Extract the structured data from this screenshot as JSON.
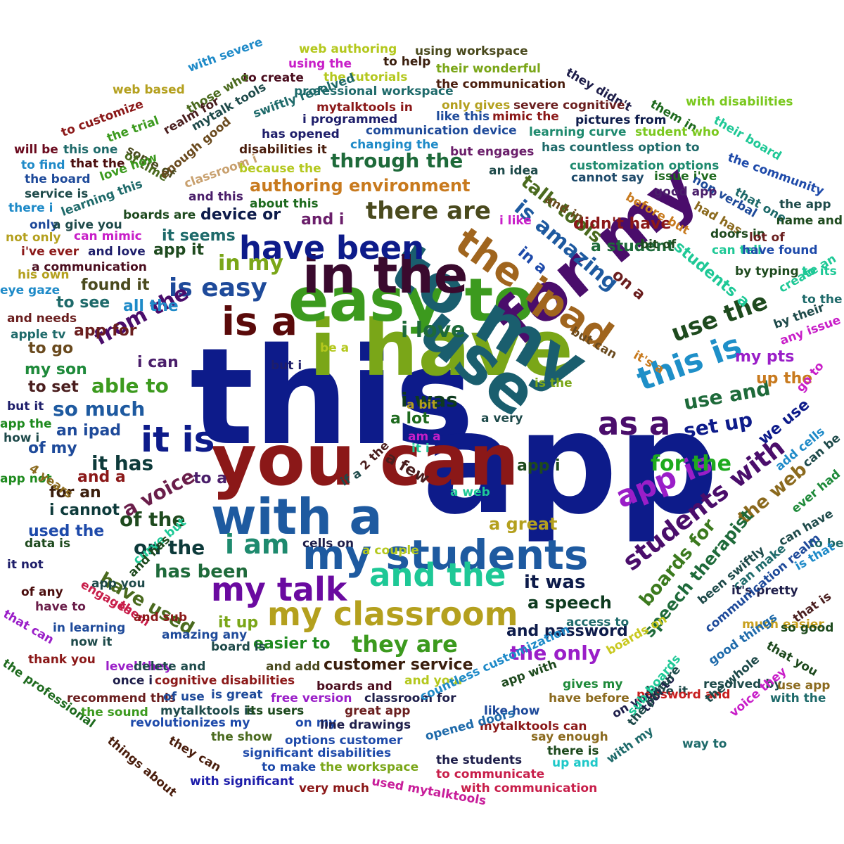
{
  "words": [
    {
      "text": "this",
      "color": "#0d1b8a"
    },
    {
      "text": "app",
      "color": "#0d1b8a"
    },
    {
      "text": "i have",
      "color": "#7aa618"
    },
    {
      "text": "easy to",
      "color": "#3c9a1e"
    },
    {
      "text": "use",
      "color": "#1a5e6e"
    },
    {
      "text": "for my",
      "color": "#4a0d6b"
    },
    {
      "text": "you can",
      "color": "#8b1818"
    },
    {
      "text": "to my",
      "color": "#1a5e6e"
    },
    {
      "text": "in the",
      "color": "#3a0a2e"
    },
    {
      "text": "with a",
      "color": "#1e5aa0"
    },
    {
      "text": "my students",
      "color": "#1e5aa0"
    },
    {
      "text": "is a",
      "color": "#5a0a0a"
    },
    {
      "text": "it is",
      "color": "#0d1b8a"
    },
    {
      "text": "the ipad",
      "color": "#a0651e"
    },
    {
      "text": "this is",
      "color": "#1e8fc8"
    },
    {
      "text": "as a",
      "color": "#4a0d6b"
    },
    {
      "text": "have been",
      "color": "#0d1b8a"
    },
    {
      "text": "is easy",
      "color": "#1e4a9a"
    },
    {
      "text": "my talk",
      "color": "#6a0aa0"
    },
    {
      "text": "and the",
      "color": "#1ec896"
    },
    {
      "text": "my classroom",
      "color": "#b4a01e"
    },
    {
      "text": "app is",
      "color": "#9a1ec8"
    },
    {
      "text": "i am",
      "color": "#1e8a6e"
    },
    {
      "text": "students with",
      "color": "#4a0d6b"
    },
    {
      "text": "is amazing",
      "color": "#1e5aa0"
    },
    {
      "text": "use the",
      "color": "#1e4a1e"
    },
    {
      "text": "there are",
      "color": "#4a4a1e"
    },
    {
      "text": "through the",
      "color": "#1e6a3a"
    },
    {
      "text": "authoring environment",
      "color": "#c87a1e"
    },
    {
      "text": "talk tools",
      "color": "#4a6a1e"
    },
    {
      "text": "didn't have",
      "color": "#8b1818"
    },
    {
      "text": "in my",
      "color": "#7aa618"
    },
    {
      "text": "i love",
      "color": "#1e6a3a"
    },
    {
      "text": "from the",
      "color": "#4a0d6b"
    },
    {
      "text": "i was",
      "color": "#0d3a1e"
    },
    {
      "text": "able to",
      "color": "#3c9a1e"
    },
    {
      "text": "so much",
      "color": "#1e5aa0"
    },
    {
      "text": "for the",
      "color": "#1eaa1e"
    },
    {
      "text": "use and",
      "color": "#1e6a3a"
    },
    {
      "text": "set up",
      "color": "#0d1b8a"
    },
    {
      "text": "boards for",
      "color": "#3c7a1e"
    },
    {
      "text": "the web",
      "color": "#8b6a1e"
    },
    {
      "text": "speech therapist",
      "color": "#1e6a3a"
    },
    {
      "text": "it has",
      "color": "#0d3a3a"
    },
    {
      "text": "a voice",
      "color": "#6a1e4a"
    },
    {
      "text": "of the",
      "color": "#1e4a1e"
    },
    {
      "text": "on the",
      "color": "#0d3a3a"
    },
    {
      "text": "has been",
      "color": "#1e6a3a"
    },
    {
      "text": "have used",
      "color": "#4a6a1e"
    },
    {
      "text": "it was",
      "color": "#0d1b4a"
    },
    {
      "text": "they are",
      "color": "#3c9a1e"
    },
    {
      "text": "customer service",
      "color": "#3a1e0d"
    },
    {
      "text": "and password",
      "color": "#0d1b4a"
    },
    {
      "text": "the only",
      "color": "#9a1ec8"
    },
    {
      "text": "a great",
      "color": "#b4a01e"
    },
    {
      "text": "a speech",
      "color": "#0d3a1e"
    },
    {
      "text": "app i",
      "color": "#1e4a1e"
    },
    {
      "text": "it up",
      "color": "#7aa618"
    },
    {
      "text": "easier to",
      "color": "#1e8a1e"
    },
    {
      "text": "device or",
      "color": "#0d1b4a"
    },
    {
      "text": "and i",
      "color": "#6a1e6a"
    },
    {
      "text": "it seems",
      "color": "#1e6a6a"
    },
    {
      "text": "app it",
      "color": "#1e4a1e"
    },
    {
      "text": "found it",
      "color": "#4a4a1e"
    },
    {
      "text": "to see",
      "color": "#1e6a6a"
    },
    {
      "text": "all the",
      "color": "#1e8ac8"
    },
    {
      "text": "app for",
      "color": "#6a1e1e"
    },
    {
      "text": "i can",
      "color": "#4a1e6a"
    },
    {
      "text": "to go",
      "color": "#6a4a1e"
    },
    {
      "text": "my son",
      "color": "#1e8a3a"
    },
    {
      "text": "to set",
      "color": "#4a1e1e"
    },
    {
      "text": "an ipad",
      "color": "#1e4a9a"
    },
    {
      "text": "of my",
      "color": "#1e4a9a"
    },
    {
      "text": "and a",
      "color": "#8b1818"
    },
    {
      "text": "for an",
      "color": "#3a1e0d"
    },
    {
      "text": "i cannot",
      "color": "#0d3a3a"
    },
    {
      "text": "used the",
      "color": "#1e4aaa"
    },
    {
      "text": "to a",
      "color": "#4a1e6a"
    },
    {
      "text": "a lot",
      "color": "#1e6a1e"
    },
    {
      "text": "a few",
      "color": "#4a1e1e"
    },
    {
      "text": "a student",
      "color": "#1e6a3a"
    },
    {
      "text": "on a",
      "color": "#6a1e1e"
    },
    {
      "text": "in a",
      "color": "#1e4aaa"
    },
    {
      "text": "students a",
      "color": "#1ec896"
    },
    {
      "text": "my pts",
      "color": "#9a1ec8"
    },
    {
      "text": "up the",
      "color": "#c87a1e"
    },
    {
      "text": "we use",
      "color": "#0d1b8a"
    },
    {
      "text": "using workspace",
      "color": "#4a4a1e"
    },
    {
      "text": "web authoring",
      "color": "#b4c81e"
    },
    {
      "text": "using the",
      "color": "#c81ec8"
    },
    {
      "text": "with severe",
      "color": "#1e8ac8"
    },
    {
      "text": "to help",
      "color": "#3a1e0d"
    },
    {
      "text": "to create",
      "color": "#4a0d1e"
    },
    {
      "text": "the tutorials",
      "color": "#b4c81e"
    },
    {
      "text": "their wonderful",
      "color": "#7aa618"
    },
    {
      "text": "the communication",
      "color": "#4a1e0d"
    },
    {
      "text": "they didn't",
      "color": "#1e1e4a"
    },
    {
      "text": "web based",
      "color": "#b4a01e"
    },
    {
      "text": "those who",
      "color": "#4a6a1e"
    },
    {
      "text": "professional workspace",
      "color": "#1e6a6a"
    },
    {
      "text": "with disabilities",
      "color": "#7ac81e"
    },
    {
      "text": "swiftly resolved",
      "color": "#1e6a6a"
    },
    {
      "text": "mytalktools in",
      "color": "#8b1818"
    },
    {
      "text": "only gives",
      "color": "#b4a01e"
    },
    {
      "text": "severe cognitive",
      "color": "#6a1e1e"
    },
    {
      "text": "them in",
      "color": "#1e6a1e"
    },
    {
      "text": "mytalk tools",
      "color": "#1e4a4a"
    },
    {
      "text": "like this",
      "color": "#1e4a9a"
    },
    {
      "text": "mimic the",
      "color": "#8b1818"
    },
    {
      "text": "pictures from",
      "color": "#0d1b4a"
    },
    {
      "text": "i programmed",
      "color": "#1e1e6a"
    },
    {
      "text": "to customize",
      "color": "#8b1818"
    },
    {
      "text": "the trial",
      "color": "#3c9a1e"
    },
    {
      "text": "realm for",
      "color": "#4a1e1e"
    },
    {
      "text": "has opened",
      "color": "#1e1e6a"
    },
    {
      "text": "communication device",
      "color": "#1e4a9a"
    },
    {
      "text": "learning curve",
      "color": "#1e8a6e"
    },
    {
      "text": "student who",
      "color": "#7ac81e"
    },
    {
      "text": "their board",
      "color": "#1ec896"
    },
    {
      "text": "some of",
      "color": "#4a4a1e"
    },
    {
      "text": "will be",
      "color": "#6a0a1e"
    },
    {
      "text": "this one",
      "color": "#1e6a6a"
    },
    {
      "text": "of time",
      "color": "#4a6a1e"
    },
    {
      "text": "disabilities it",
      "color": "#4a1e0d"
    },
    {
      "text": "changing the",
      "color": "#1e8ac8"
    },
    {
      "text": "but engages",
      "color": "#6a1e6a"
    },
    {
      "text": "has countless option to",
      "color": "#1e6a6a"
    },
    {
      "text": "to find",
      "color": "#1e8ac8"
    },
    {
      "text": "that the",
      "color": "#4a0d0d"
    },
    {
      "text": "enough good",
      "color": "#6a4a1e"
    },
    {
      "text": "customization options",
      "color": "#1e8a6e"
    },
    {
      "text": "the community",
      "color": "#1e4aaa"
    },
    {
      "text": "the board",
      "color": "#1e4a9a"
    },
    {
      "text": "love how",
      "color": "#3c9a1e"
    },
    {
      "text": "classroom i",
      "color": "#c8a06e"
    },
    {
      "text": "because the",
      "color": "#b4c81e"
    },
    {
      "text": "an idea",
      "color": "#1e4a4a"
    },
    {
      "text": "cannot say",
      "color": "#1e4a6a"
    },
    {
      "text": "issue i've",
      "color": "#1e6a1e"
    },
    {
      "text": "non verbal",
      "color": "#1e4a9a"
    },
    {
      "text": "that one",
      "color": "#1e6a6a"
    },
    {
      "text": "service is",
      "color": "#1e4a4a"
    },
    {
      "text": "learning this",
      "color": "#1e6a6a"
    },
    {
      "text": "and this",
      "color": "#4a1e6a"
    },
    {
      "text": "good app",
      "color": "#4a1e6a"
    },
    {
      "text": "the app",
      "color": "#1e4a4a"
    },
    {
      "text": "there i",
      "color": "#1e8ac8"
    },
    {
      "text": "about this",
      "color": "#1e6a1e"
    },
    {
      "text": "and in",
      "color": "#6a4a1e"
    },
    {
      "text": "before but",
      "color": "#c87a1e"
    },
    {
      "text": "had has",
      "color": "#8b6a1e"
    },
    {
      "text": "name and",
      "color": "#1e4a1e"
    },
    {
      "text": "boards are",
      "color": "#1e4a1e"
    },
    {
      "text": "only",
      "color": "#1e4a9a"
    },
    {
      "text": "a give you",
      "color": "#1e4a4a"
    },
    {
      "text": "i like",
      "color": "#c81ec8"
    },
    {
      "text": "doors in",
      "color": "#1e4a1e"
    },
    {
      "text": "lot of",
      "color": "#6a1e1e"
    },
    {
      "text": "not only",
      "color": "#b4a01e"
    },
    {
      "text": "can mimic",
      "color": "#c81ec8"
    },
    {
      "text": "bit of",
      "color": "#1e4a1e"
    },
    {
      "text": "can tell",
      "color": "#1ec896"
    },
    {
      "text": "have found",
      "color": "#1e4aaa"
    },
    {
      "text": "i've ever",
      "color": "#8b1818"
    },
    {
      "text": "and love",
      "color": "#1e1e6a"
    },
    {
      "text": "by typing",
      "color": "#1e4a1e"
    },
    {
      "text": "to its",
      "color": "#1ec896"
    },
    {
      "text": "a communication",
      "color": "#4a0d1e"
    },
    {
      "text": "create an",
      "color": "#1ec896"
    },
    {
      "text": "to the",
      "color": "#1e6a6a"
    },
    {
      "text": "his own",
      "color": "#b4a01e"
    },
    {
      "text": "eye gaze",
      "color": "#1e8ac8"
    },
    {
      "text": "and needs",
      "color": "#6a1e1e"
    },
    {
      "text": "apple tv",
      "color": "#1e6a6a"
    },
    {
      "text": "by their",
      "color": "#1e4a4a"
    },
    {
      "text": "any issue",
      "color": "#c81ec8"
    },
    {
      "text": "but can",
      "color": "#6a4a1e"
    },
    {
      "text": "it's a",
      "color": "#c87a1e"
    },
    {
      "text": "be a",
      "color": "#b4c81e"
    },
    {
      "text": "but i",
      "color": "#1e1e6a"
    },
    {
      "text": "is the",
      "color": "#7aa618"
    },
    {
      "text": "go to",
      "color": "#c81ec8"
    },
    {
      "text": "but it",
      "color": "#1e1e6a"
    },
    {
      "text": "a bit",
      "color": "#b4a01e"
    },
    {
      "text": "app the",
      "color": "#1e8a1e"
    },
    {
      "text": "a very",
      "color": "#1e4a4a"
    },
    {
      "text": "how i",
      "color": "#1e4a4a"
    },
    {
      "text": "am a",
      "color": "#c81ec8"
    },
    {
      "text": "it i",
      "color": "#1ec896"
    },
    {
      "text": "add cells",
      "color": "#1e8ac8"
    },
    {
      "text": "can be",
      "color": "#1e4a4a"
    },
    {
      "text": "app not",
      "color": "#1e8a1e"
    },
    {
      "text": "4 years",
      "color": "#8b6a1e"
    },
    {
      "text": "2 the",
      "color": "#4a1e1e"
    },
    {
      "text": "if a",
      "color": "#1e4a4a"
    },
    {
      "text": "a web",
      "color": "#1ec896"
    },
    {
      "text": "ever had",
      "color": "#1e8a3a"
    },
    {
      "text": "data is",
      "color": "#1e4a1e"
    },
    {
      "text": "cells on",
      "color": "#1e1e4a"
    },
    {
      "text": "a couple",
      "color": "#b4c81e"
    },
    {
      "text": "can have",
      "color": "#1e4a4a"
    },
    {
      "text": "it not",
      "color": "#1e1e6a"
    },
    {
      "text": "curve but",
      "color": "#1ec896"
    },
    {
      "text": "and has",
      "color": "#1e4a1e"
    },
    {
      "text": "to be",
      "color": "#1e6a6a"
    },
    {
      "text": "is that",
      "color": "#1e8ac8"
    },
    {
      "text": "app you",
      "color": "#1e4a4a"
    },
    {
      "text": "engages",
      "color": "#c81e4a"
    },
    {
      "text": "been swiftly",
      "color": "#1e4a4a"
    },
    {
      "text": "can make",
      "color": "#1e6a6a"
    },
    {
      "text": "it's pretty",
      "color": "#1e1e4a"
    },
    {
      "text": "of any",
      "color": "#4a0d0d"
    },
    {
      "text": "have to",
      "color": "#6a1e4a"
    },
    {
      "text": "them",
      "color": "#c81e4a"
    },
    {
      "text": "and sub",
      "color": "#8b1818"
    },
    {
      "text": "communication realm",
      "color": "#1e4a9a"
    },
    {
      "text": "that is",
      "color": "#4a1e1e"
    },
    {
      "text": "that can",
      "color": "#9a1ec8"
    },
    {
      "text": "in learning",
      "color": "#1e4a9a"
    },
    {
      "text": "now it",
      "color": "#1e4a4a"
    },
    {
      "text": "access to",
      "color": "#1e6a6a"
    },
    {
      "text": "much easier",
      "color": "#c8a01e"
    },
    {
      "text": "so good",
      "color": "#1e4a1e"
    },
    {
      "text": "amazing any",
      "color": "#1e4a9a"
    },
    {
      "text": "board is",
      "color": "#1e4a4a"
    },
    {
      "text": "boards on",
      "color": "#c8c81e"
    },
    {
      "text": "good things",
      "color": "#1e6aaa"
    },
    {
      "text": "that you",
      "color": "#1e4a1e"
    },
    {
      "text": "thank you",
      "color": "#8b1818"
    },
    {
      "text": "level they",
      "color": "#9a1ec8"
    },
    {
      "text": "delete and",
      "color": "#1e4a4a"
    },
    {
      "text": "and add",
      "color": "#4a4a1e"
    },
    {
      "text": "once i",
      "color": "#1e1e4a"
    },
    {
      "text": "cognitive disabilities",
      "color": "#8b1818"
    },
    {
      "text": "boards and",
      "color": "#4a0d1e"
    },
    {
      "text": "and your",
      "color": "#b4c81e"
    },
    {
      "text": "app with",
      "color": "#1e4a1e"
    },
    {
      "text": "gives my",
      "color": "#1e8a3a"
    },
    {
      "text": "love it",
      "color": "#1e4a4a"
    },
    {
      "text": "resolved by",
      "color": "#1e4a4a"
    },
    {
      "text": "use app",
      "color": "#8b6a1e"
    },
    {
      "text": "the professional",
      "color": "#1e6a1e"
    },
    {
      "text": "recommend this",
      "color": "#6a1e1e"
    },
    {
      "text": "of use",
      "color": "#1e4a9a"
    },
    {
      "text": "is great",
      "color": "#1e4a9a"
    },
    {
      "text": "free version",
      "color": "#9a1ec8"
    },
    {
      "text": "classroom for",
      "color": "#1e1e4a"
    },
    {
      "text": "countless customization",
      "color": "#1e8ac8"
    },
    {
      "text": "have before",
      "color": "#8b6a1e"
    },
    {
      "text": "password and",
      "color": "#c81e1e"
    },
    {
      "text": "the whole",
      "color": "#1e4a4a"
    },
    {
      "text": "voice they",
      "color": "#c81ec8"
    },
    {
      "text": "tool to",
      "color": "#1e1e4a"
    },
    {
      "text": "with the",
      "color": "#1e6a6a"
    },
    {
      "text": "the sound",
      "color": "#3c9a1e"
    },
    {
      "text": "mytalktools is",
      "color": "#1e4a4a"
    },
    {
      "text": "its users",
      "color": "#1e4a1e"
    },
    {
      "text": "great app",
      "color": "#6a1e1e"
    },
    {
      "text": "like how",
      "color": "#1e4a9a"
    },
    {
      "text": "on your",
      "color": "#1e1e4a"
    },
    {
      "text": "revolutionizes my",
      "color": "#1e4aaa"
    },
    {
      "text": "on my",
      "color": "#1e4aaa"
    },
    {
      "text": "line drawings",
      "color": "#1e1e4a"
    },
    {
      "text": "mytalktools can",
      "color": "#8b1818"
    },
    {
      "text": "the picture",
      "color": "#1e4a4a"
    },
    {
      "text": "sub boards",
      "color": "#1ec896"
    },
    {
      "text": "way to",
      "color": "#1e6a6a"
    },
    {
      "text": "they can",
      "color": "#4a1e0d"
    },
    {
      "text": "the show",
      "color": "#4a6a1e"
    },
    {
      "text": "options customer",
      "color": "#1e4aaa"
    },
    {
      "text": "opened doors",
      "color": "#1e6aaa"
    },
    {
      "text": "say enough",
      "color": "#8b6a1e"
    },
    {
      "text": "there is",
      "color": "#1e4a1e"
    },
    {
      "text": "with my",
      "color": "#1e6a6a"
    },
    {
      "text": "things about",
      "color": "#4a1e0d"
    },
    {
      "text": "significant disabilities",
      "color": "#1e4aaa"
    },
    {
      "text": "the students",
      "color": "#1e1e4a"
    },
    {
      "text": "up and",
      "color": "#1ec8c8"
    },
    {
      "text": "to make",
      "color": "#1e4aaa"
    },
    {
      "text": "the workspace",
      "color": "#7aa618"
    },
    {
      "text": "to communicate",
      "color": "#c81e4a"
    },
    {
      "text": "with significant",
      "color": "#1e1eaa"
    },
    {
      "text": "very much",
      "color": "#8b1818"
    },
    {
      "text": "with communication",
      "color": "#c81e4a"
    },
    {
      "text": "used mytalktools",
      "color": "#c81e9a"
    }
  ]
}
